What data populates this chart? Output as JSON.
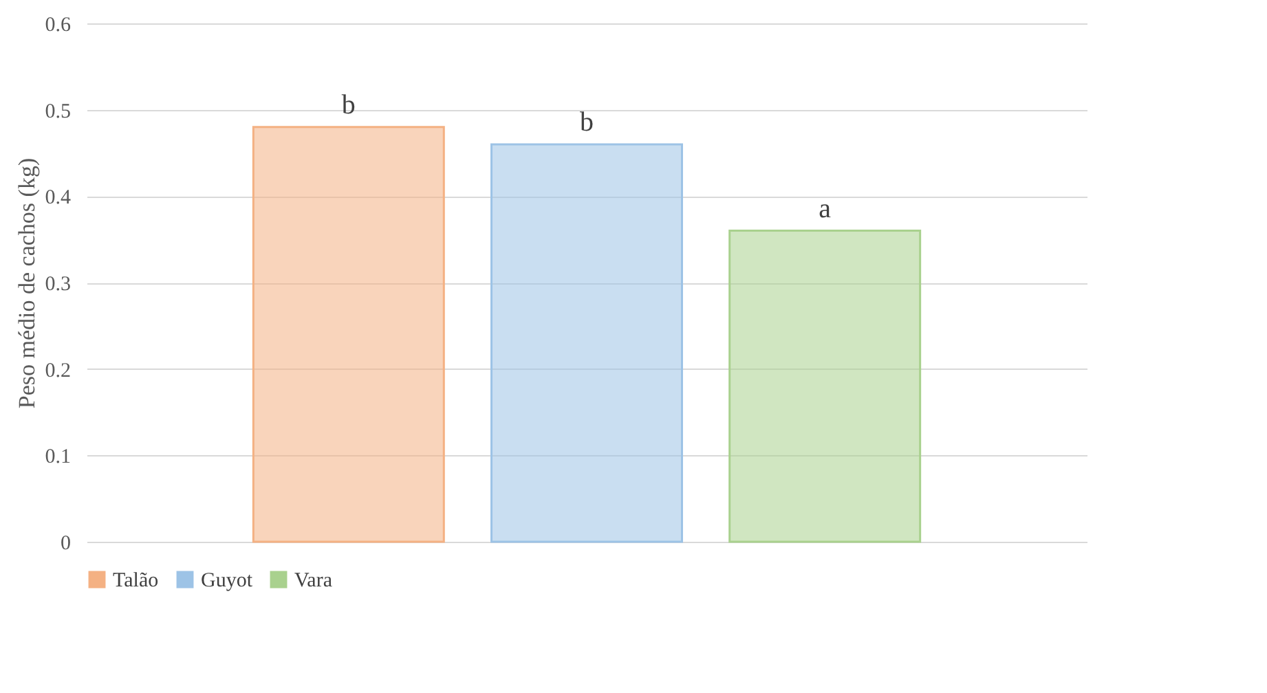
{
  "chart_data": {
    "type": "bar",
    "ylabel": "Peso médio de cachos (kg)",
    "categories": [
      null
    ],
    "series": [
      {
        "name": "Talão",
        "color": "#f4b183",
        "values": [
          0.48
        ],
        "value_labels": [
          "b"
        ]
      },
      {
        "name": "Guyot",
        "color": "#9dc3e6",
        "values": [
          0.46
        ],
        "value_labels": [
          "b"
        ]
      },
      {
        "name": "Vara",
        "color": "#a9d18e",
        "values": [
          0.36
        ],
        "value_labels": [
          "a"
        ]
      }
    ],
    "ylim": [
      0,
      0.6
    ],
    "yticks": [
      0,
      0.1,
      0.2,
      0.3,
      0.4,
      0.5,
      0.6
    ],
    "grid": "y",
    "legend": "bottom"
  }
}
